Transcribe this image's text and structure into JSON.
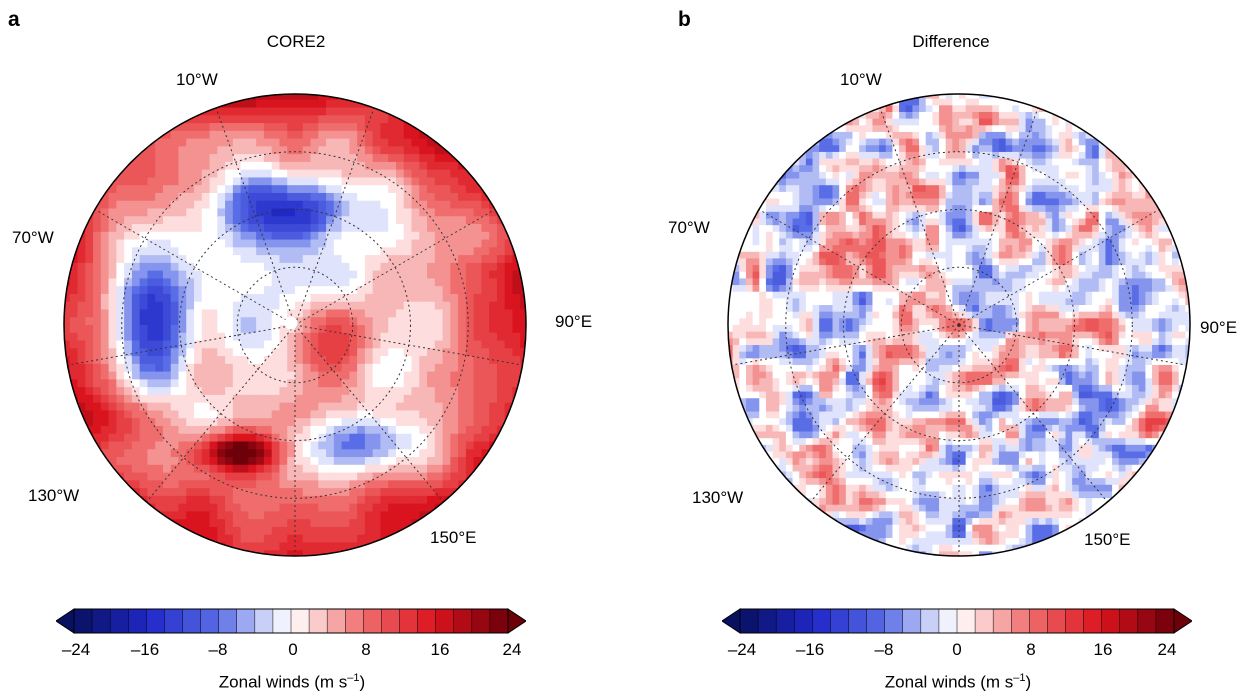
{
  "panels": [
    {
      "letter": "a",
      "title": "CORE2",
      "lon_labels": {
        "top": "10°W",
        "left": "70°W",
        "right": "90°E",
        "bottom_left": "130°W",
        "bottom_right": "150°E"
      },
      "colorbar": {
        "ticks": [
          "–24",
          "–16",
          "–8",
          "0",
          "8",
          "16",
          "24"
        ],
        "label": "Zonal winds (m s",
        "label_sup": "–1",
        "label_end": ")"
      }
    },
    {
      "letter": "b",
      "title": "Difference",
      "lon_labels": {
        "top": "10°W",
        "left": "70°W",
        "right": "90°E",
        "bottom_left": "130°W",
        "bottom_right": "150°E"
      },
      "colorbar": {
        "ticks": [
          "–24",
          "–16",
          "–8",
          "0",
          "8",
          "16",
          "24"
        ],
        "label": "Zonal winds (m s",
        "label_sup": "–1",
        "label_end": ")"
      }
    }
  ],
  "chart_data": [
    {
      "type": "heatmap",
      "title": "CORE2",
      "projection": "polar stereographic (Southern Hemisphere)",
      "variable": "Zonal winds",
      "units": "m s–1",
      "colorbar_range": [
        -24,
        24
      ],
      "colorbar_ticks": [
        -24,
        -16,
        -8,
        0,
        8,
        16,
        24
      ],
      "colorbar_step": 2,
      "colormap": "blue-white-red (diverging)",
      "longitude_labels": [
        "10°W",
        "70°W",
        "90°E",
        "130°W",
        "150°E"
      ]
    },
    {
      "type": "heatmap",
      "title": "Difference",
      "projection": "polar stereographic (Southern Hemisphere)",
      "variable": "Zonal winds",
      "units": "m s–1",
      "colorbar_range": [
        -24,
        24
      ],
      "colorbar_ticks": [
        -24,
        -16,
        -8,
        0,
        8,
        16,
        24
      ],
      "colorbar_step": 2,
      "colormap": "blue-white-red (diverging)",
      "longitude_labels": [
        "10°W",
        "70°W",
        "90°E",
        "130°W",
        "150°E"
      ]
    }
  ]
}
